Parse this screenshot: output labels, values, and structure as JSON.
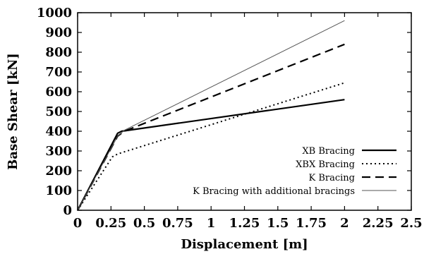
{
  "chart_data": {
    "type": "line",
    "title": "",
    "xlabel": "Displacement [m]",
    "ylabel": "Base Shear [kN]",
    "xlim": [
      0,
      2.5
    ],
    "ylim": [
      0,
      1000
    ],
    "xticks": [
      0,
      0.25,
      0.5,
      0.75,
      1,
      1.25,
      1.5,
      1.75,
      2,
      2.25,
      2.5
    ],
    "xtick_labels": [
      "0",
      "0.25",
      "0.5",
      "0.75",
      "1",
      "1.25",
      "1.5",
      "1.75",
      "2",
      "2.25",
      "2.5"
    ],
    "yticks": [
      0,
      100,
      200,
      300,
      400,
      500,
      600,
      700,
      800,
      900,
      1000
    ],
    "ytick_labels": [
      "0",
      "100",
      "200",
      "300",
      "400",
      "500",
      "600",
      "700",
      "800",
      "900",
      "1000"
    ],
    "grid": false,
    "legend_position": "bottom-right",
    "series": [
      {
        "name": "XB Bracing",
        "style": "solid-thick",
        "color": "#000000",
        "x": [
          0,
          0.3,
          0.33,
          2.0
        ],
        "y": [
          0,
          390,
          400,
          560
        ]
      },
      {
        "name": "XBX Bracing",
        "style": "dotted",
        "color": "#000000",
        "x": [
          0,
          0.26,
          0.3,
          2.0
        ],
        "y": [
          0,
          270,
          285,
          645
        ]
      },
      {
        "name": "K Bracing",
        "style": "dashed",
        "color": "#000000",
        "x": [
          0,
          0.3,
          0.35,
          2.0
        ],
        "y": [
          0,
          375,
          400,
          840
        ]
      },
      {
        "name": "K Bracing with additional bracings",
        "style": "solid-thin",
        "color": "#555555",
        "x": [
          0,
          0.3,
          0.35,
          2.0
        ],
        "y": [
          0,
          375,
          405,
          960
        ]
      }
    ]
  }
}
